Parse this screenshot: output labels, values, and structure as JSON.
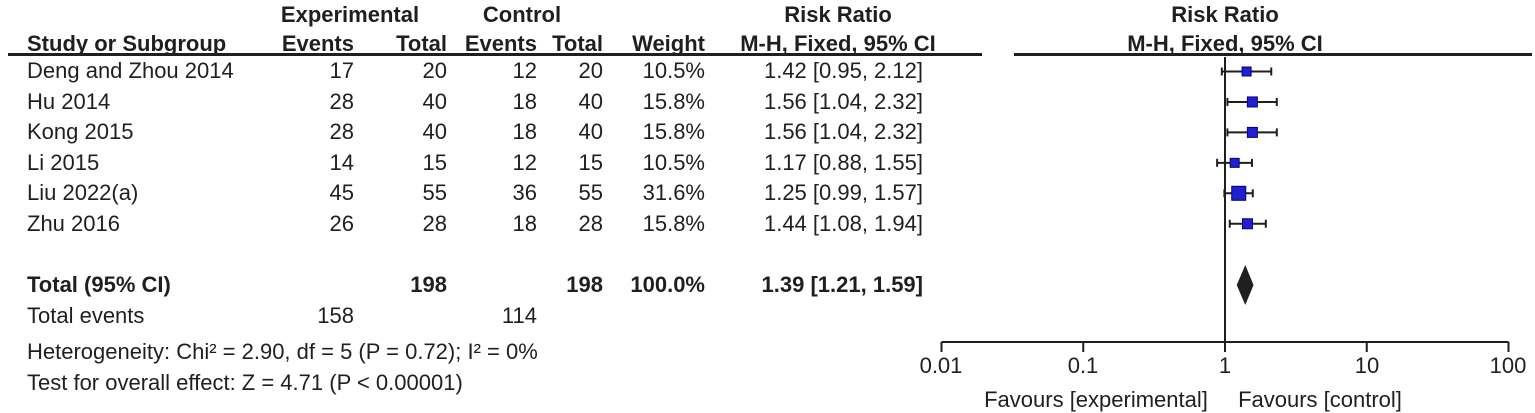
{
  "title_row": {
    "experimental": "Experimental",
    "control": "Control",
    "risk_ratio_left": "Risk Ratio",
    "risk_ratio_right": "Risk Ratio"
  },
  "columns": {
    "study": "Study or Subgroup",
    "events_exp": "Events",
    "total_exp": "Total",
    "events_ctrl": "Events",
    "total_ctrl": "Total",
    "weight": "Weight",
    "mh_fixed_left": "M-H, Fixed, 95% CI",
    "mh_fixed_right": "M-H, Fixed, 95% CI"
  },
  "studies": [
    {
      "name": "Deng and Zhou 2014",
      "events_exp": "17",
      "total_exp": "20",
      "events_ctrl": "12",
      "total_ctrl": "20",
      "weight": "10.5%",
      "rr_ci": "1.42 [0.95, 2.12]"
    },
    {
      "name": "Hu 2014",
      "events_exp": "28",
      "total_exp": "40",
      "events_ctrl": "18",
      "total_ctrl": "40",
      "weight": "15.8%",
      "rr_ci": "1.56 [1.04, 2.32]"
    },
    {
      "name": "Kong 2015",
      "events_exp": "28",
      "total_exp": "40",
      "events_ctrl": "18",
      "total_ctrl": "40",
      "weight": "15.8%",
      "rr_ci": "1.56 [1.04, 2.32]"
    },
    {
      "name": "Li 2015",
      "events_exp": "14",
      "total_exp": "15",
      "events_ctrl": "12",
      "total_ctrl": "15",
      "weight": "10.5%",
      "rr_ci": "1.17 [0.88, 1.55]"
    },
    {
      "name": "Liu 2022(a)",
      "events_exp": "45",
      "total_exp": "55",
      "events_ctrl": "36",
      "total_ctrl": "55",
      "weight": "31.6%",
      "rr_ci": "1.25 [0.99, 1.57]"
    },
    {
      "name": "Zhu 2016",
      "events_exp": "26",
      "total_exp": "28",
      "events_ctrl": "18",
      "total_ctrl": "28",
      "weight": "15.8%",
      "rr_ci": "1.44 [1.08, 1.94]"
    }
  ],
  "total_row": {
    "label": "Total (95% CI)",
    "total_exp": "198",
    "total_ctrl": "198",
    "weight": "100.0%",
    "rr_ci": "1.39 [1.21, 1.59]"
  },
  "total_events": {
    "label": "Total events",
    "events_exp": "158",
    "events_ctrl": "114"
  },
  "footer": {
    "heterogeneity": "Heterogeneity: Chi² = 2.90, df = 5 (P = 0.72); I² = 0%",
    "overall_effect": "Test for overall effect: Z = 4.71 (P < 0.00001)"
  },
  "axis": {
    "ticks": [
      "0.01",
      "0.1",
      "1",
      "10",
      "100"
    ],
    "favours_left": "Favours [experimental]",
    "favours_right": "Favours [control]"
  },
  "colors": {
    "marker_fill": "#2020cf",
    "marker_border": "#000080",
    "diamond": "#1f1f1f",
    "line": "#1f1f1f"
  },
  "chart_data": {
    "type": "forest",
    "effect_measure": "Risk Ratio, M-H, Fixed, 95% CI",
    "x_scale": "log",
    "xlim": [
      0.01,
      100
    ],
    "x_ticks": [
      0.01,
      0.1,
      1,
      10,
      100
    ],
    "null_line": 1,
    "studies": [
      {
        "name": "Deng and Zhou 2014",
        "events_exp": 17,
        "total_exp": 20,
        "events_ctrl": 12,
        "total_ctrl": 20,
        "weight_pct": 10.5,
        "rr": 1.42,
        "ci": [
          0.95,
          2.12
        ]
      },
      {
        "name": "Hu 2014",
        "events_exp": 28,
        "total_exp": 40,
        "events_ctrl": 18,
        "total_ctrl": 40,
        "weight_pct": 15.8,
        "rr": 1.56,
        "ci": [
          1.04,
          2.32
        ]
      },
      {
        "name": "Kong 2015",
        "events_exp": 28,
        "total_exp": 40,
        "events_ctrl": 18,
        "total_ctrl": 40,
        "weight_pct": 15.8,
        "rr": 1.56,
        "ci": [
          1.04,
          2.32
        ]
      },
      {
        "name": "Li 2015",
        "events_exp": 14,
        "total_exp": 15,
        "events_ctrl": 12,
        "total_ctrl": 15,
        "weight_pct": 10.5,
        "rr": 1.17,
        "ci": [
          0.88,
          1.55
        ]
      },
      {
        "name": "Liu 2022(a)",
        "events_exp": 45,
        "total_exp": 55,
        "events_ctrl": 36,
        "total_ctrl": 55,
        "weight_pct": 31.6,
        "rr": 1.25,
        "ci": [
          0.99,
          1.57
        ]
      },
      {
        "name": "Zhu 2016",
        "events_exp": 26,
        "total_exp": 28,
        "events_ctrl": 18,
        "total_ctrl": 28,
        "weight_pct": 15.8,
        "rr": 1.44,
        "ci": [
          1.08,
          1.94
        ]
      }
    ],
    "total": {
      "rr": 1.39,
      "ci": [
        1.21,
        1.59
      ],
      "total_exp": 198,
      "total_ctrl": 198,
      "events_exp": 158,
      "events_ctrl": 114,
      "weight_pct": 100.0
    },
    "heterogeneity": {
      "chi2": 2.9,
      "df": 5,
      "p": 0.72,
      "i2_pct": 0
    },
    "overall_effect": {
      "z": 4.71,
      "p": "< 0.00001"
    }
  }
}
